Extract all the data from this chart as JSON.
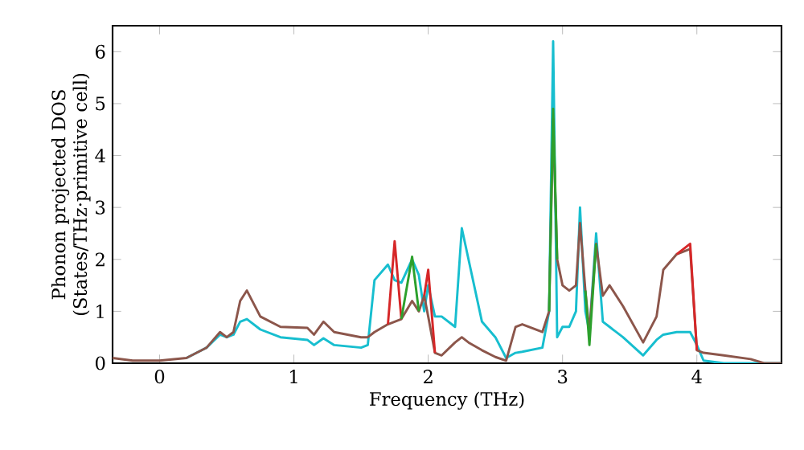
{
  "chart_data": {
    "type": "line",
    "xlabel": "Frequency (THz)",
    "ylabel": "Phonon projected DOS (States/THz·primitive cell)",
    "x": [
      -0.35,
      -0.2,
      0,
      0.2,
      0.35,
      0.45,
      0.5,
      0.55,
      0.6,
      0.65,
      0.75,
      0.9,
      1.1,
      1.15,
      1.22,
      1.3,
      1.5,
      1.55,
      1.6,
      1.7,
      1.75,
      1.8,
      1.88,
      1.93,
      1.97,
      2.0,
      2.05,
      2.1,
      2.2,
      2.25,
      2.3,
      2.4,
      2.5,
      2.58,
      2.65,
      2.7,
      2.85,
      2.9,
      2.93,
      2.96,
      3.0,
      3.05,
      3.1,
      3.13,
      3.17,
      3.2,
      3.25,
      3.3,
      3.35,
      3.45,
      3.6,
      3.7,
      3.75,
      3.85,
      3.95,
      4.0,
      4.05,
      4.2,
      4.4,
      4.5,
      4.63
    ],
    "series": [
      {
        "color": "#17becf",
        "values": [
          null,
          null,
          null,
          0.1,
          0.3,
          0.55,
          0.5,
          0.55,
          0.8,
          0.85,
          0.65,
          0.5,
          0.45,
          0.35,
          0.48,
          0.35,
          0.3,
          0.35,
          1.6,
          1.9,
          1.6,
          1.55,
          2.0,
          1.7,
          1.0,
          1.5,
          0.9,
          0.9,
          0.7,
          2.6,
          2.0,
          0.8,
          0.5,
          0.1,
          0.2,
          0.22,
          0.3,
          1.0,
          6.2,
          0.5,
          0.7,
          0.7,
          1.0,
          3.0,
          1.0,
          0.6,
          2.5,
          0.8,
          0.7,
          0.5,
          0.15,
          0.45,
          0.55,
          0.6,
          0.6,
          0.35,
          0.05,
          0,
          0,
          0,
          0
        ]
      },
      {
        "color": "#8c564b",
        "values": [
          0.1,
          0.05,
          0.05,
          0.1,
          0.3,
          0.6,
          0.5,
          0.6,
          1.2,
          1.4,
          0.9,
          0.7,
          0.68,
          0.55,
          0.8,
          0.6,
          0.5,
          0.5,
          0.6,
          0.75,
          0.8,
          0.85,
          1.2,
          1.0,
          1.3,
          0.9,
          0.2,
          0.15,
          0.4,
          0.5,
          0.4,
          0.25,
          0.12,
          0.05,
          0.7,
          0.75,
          0.6,
          1.0,
          4.7,
          2.0,
          1.5,
          1.4,
          1.5,
          2.7,
          1.4,
          0.6,
          2.3,
          1.3,
          1.5,
          1.1,
          0.4,
          0.9,
          1.8,
          2.1,
          2.2,
          0.25,
          0.2,
          0.15,
          0.08,
          0,
          0
        ]
      },
      {
        "color": "#d62728",
        "values": [
          null,
          null,
          null,
          null,
          null,
          null,
          null,
          null,
          null,
          null,
          null,
          null,
          null,
          null,
          null,
          null,
          null,
          null,
          null,
          0.75,
          2.35,
          0.85,
          null,
          null,
          1.3,
          1.8,
          0.2,
          null,
          null,
          null,
          null,
          null,
          null,
          null,
          null,
          null,
          null,
          null,
          null,
          null,
          null,
          null,
          null,
          null,
          null,
          null,
          null,
          null,
          null,
          null,
          null,
          null,
          null,
          2.1,
          2.3,
          0.25,
          null,
          null,
          null,
          null,
          null
        ]
      },
      {
        "color": "#2ca02c",
        "values": [
          null,
          null,
          null,
          null,
          null,
          null,
          null,
          null,
          null,
          null,
          null,
          null,
          null,
          null,
          null,
          null,
          null,
          null,
          null,
          null,
          null,
          0.85,
          2.05,
          1.0,
          null,
          null,
          null,
          null,
          null,
          null,
          null,
          null,
          null,
          null,
          null,
          null,
          null,
          1.0,
          4.9,
          2.0,
          null,
          null,
          null,
          null,
          1.4,
          0.35,
          2.3,
          null,
          null,
          null,
          null,
          null,
          null,
          null,
          null,
          null,
          null,
          null,
          null,
          null,
          null
        ]
      }
    ],
    "xlim": [
      -0.35,
      4.63
    ],
    "ylim": [
      0,
      6.5
    ],
    "xticks": [
      0,
      1,
      2,
      3,
      4
    ],
    "yticks": [
      0,
      1,
      2,
      3,
      4,
      5,
      6
    ],
    "grid": false,
    "marker": "none",
    "line_style": "solid"
  }
}
